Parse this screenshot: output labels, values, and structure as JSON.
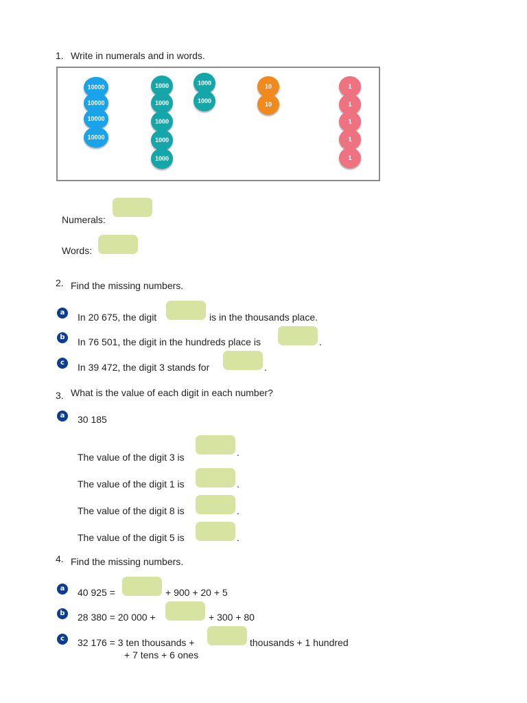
{
  "q1": {
    "number": "1.",
    "instruction": "Write in numerals and in words.",
    "counters": {
      "ten_thousands": {
        "label": "10000",
        "count": 4,
        "color": "#1aa3e8"
      },
      "thousands": {
        "label": "1000",
        "count": 7,
        "color": "#14a6a8"
      },
      "tens": {
        "label": "10",
        "count": 2,
        "color": "#f08a1f"
      },
      "ones": {
        "label": "1",
        "count": 5,
        "color": "#ee7280"
      }
    },
    "numerals_label": "Numerals:",
    "words_label": "Words:"
  },
  "q2": {
    "number": "2.",
    "instruction": "Find the missing numbers.",
    "a": {
      "letter": "a",
      "before": "In 20 675, the digit",
      "after": "is in the thousands place."
    },
    "b": {
      "letter": "b",
      "before": "In 76 501, the digit in the hundreds place is",
      "after": "."
    },
    "c": {
      "letter": "c",
      "before": "In 39 472, the digit 3 stands for",
      "after": "."
    }
  },
  "q3": {
    "number": "3.",
    "instruction": "What is the value of each digit in each number?",
    "a": {
      "letter": "a",
      "number": "30 185",
      "lines": [
        {
          "text": "The value of the digit 3 is",
          "after": "."
        },
        {
          "text": "The value of the digit 1 is",
          "after": "."
        },
        {
          "text": "The value of the digit 8 is",
          "after": "."
        },
        {
          "text": "The value of the digit 5 is",
          "after": "."
        }
      ]
    }
  },
  "q4": {
    "number": "4.",
    "instruction": "Find the missing numbers.",
    "a": {
      "letter": "a",
      "before": "40 925 =",
      "after": "+ 900 + 20 + 5"
    },
    "b": {
      "letter": "b",
      "before": "28 380 = 20 000 +",
      "after": "+ 300 + 80"
    },
    "c": {
      "letter": "c",
      "before": "32 176 = 3 ten thousands +",
      "after": "thousands + 1 hundred",
      "line2": "+ 7 tens + 6 ones"
    }
  },
  "colors": {
    "answer_box": "#d6e3a1",
    "letter_badge": "#0d3d91",
    "frame": "#8a8a8a"
  }
}
